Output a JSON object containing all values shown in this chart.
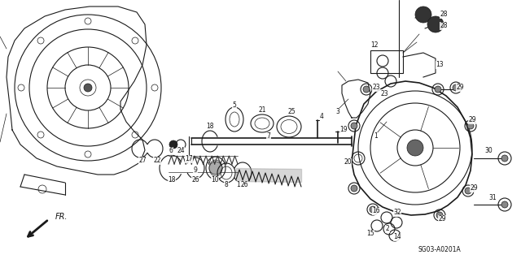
{
  "background_color": "#ffffff",
  "diagram_code": "SG03-A0201A",
  "fr_label": "FR.",
  "fig_width": 6.4,
  "fig_height": 3.19,
  "dpi": 100,
  "line_color": "#1a1a1a",
  "text_color": "#111111"
}
